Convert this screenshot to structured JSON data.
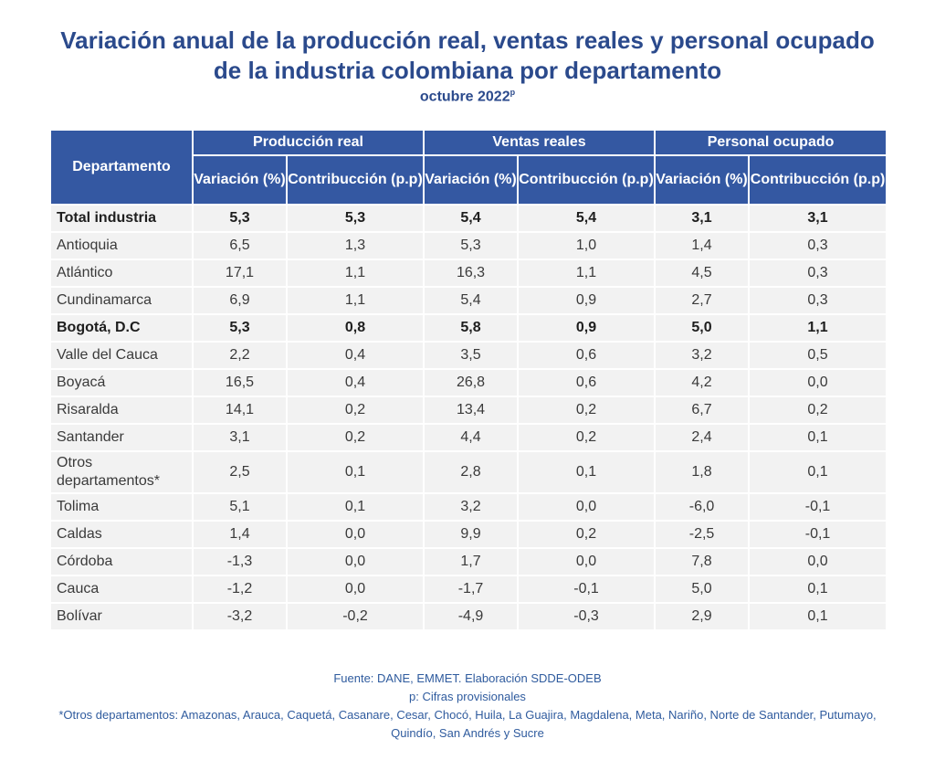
{
  "title_line1": "Variación anual de la producción real, ventas reales y personal ocupado",
  "title_line2": "de la industria colombiana por departamento",
  "subtitle": "octubre 2022",
  "subtitle_sup": "p",
  "chart_data": {
    "type": "table",
    "header_dept": "Departamento",
    "groups": [
      "Producción real",
      "Ventas reales",
      "Personal ocupado"
    ],
    "subheaders": [
      "Variación (%)",
      "Contribucción (p.p)"
    ],
    "rows": [
      {
        "name": "Total industria",
        "bold": true,
        "values": [
          "5,3",
          "5,3",
          "5,4",
          "5,4",
          "3,1",
          "3,1"
        ]
      },
      {
        "name": "Antioquia",
        "bold": false,
        "values": [
          "6,5",
          "1,3",
          "5,3",
          "1,0",
          "1,4",
          "0,3"
        ]
      },
      {
        "name": "Atlántico",
        "bold": false,
        "values": [
          "17,1",
          "1,1",
          "16,3",
          "1,1",
          "4,5",
          "0,3"
        ]
      },
      {
        "name": "Cundinamarca",
        "bold": false,
        "values": [
          "6,9",
          "1,1",
          "5,4",
          "0,9",
          "2,7",
          "0,3"
        ]
      },
      {
        "name": "Bogotá, D.C",
        "bold": true,
        "values": [
          "5,3",
          "0,8",
          "5,8",
          "0,9",
          "5,0",
          "1,1"
        ]
      },
      {
        "name": "Valle del Cauca",
        "bold": false,
        "values": [
          "2,2",
          "0,4",
          "3,5",
          "0,6",
          "3,2",
          "0,5"
        ]
      },
      {
        "name": "Boyacá",
        "bold": false,
        "values": [
          "16,5",
          "0,4",
          "26,8",
          "0,6",
          "4,2",
          "0,0"
        ]
      },
      {
        "name": "Risaralda",
        "bold": false,
        "values": [
          "14,1",
          "0,2",
          "13,4",
          "0,2",
          "6,7",
          "0,2"
        ]
      },
      {
        "name": "Santander",
        "bold": false,
        "values": [
          "3,1",
          "0,2",
          "4,4",
          "0,2",
          "2,4",
          "0,1"
        ]
      },
      {
        "name": "Otros departamentos*",
        "bold": false,
        "values": [
          "2,5",
          "0,1",
          "2,8",
          "0,1",
          "1,8",
          "0,1"
        ]
      },
      {
        "name": "Tolima",
        "bold": false,
        "values": [
          "5,1",
          "0,1",
          "3,2",
          "0,0",
          "-6,0",
          "-0,1"
        ]
      },
      {
        "name": "Caldas",
        "bold": false,
        "values": [
          "1,4",
          "0,0",
          "9,9",
          "0,2",
          "-2,5",
          "-0,1"
        ]
      },
      {
        "name": "Córdoba",
        "bold": false,
        "values": [
          "-1,3",
          "0,0",
          "1,7",
          "0,0",
          "7,8",
          "0,0"
        ]
      },
      {
        "name": "Cauca",
        "bold": false,
        "values": [
          "-1,2",
          "0,0",
          "-1,7",
          "-0,1",
          "5,0",
          "0,1"
        ]
      },
      {
        "name": "Bolívar",
        "bold": false,
        "values": [
          "-3,2",
          "-0,2",
          "-4,9",
          "-0,3",
          "2,9",
          "0,1"
        ]
      }
    ]
  },
  "notes": {
    "source": "Fuente: DANE, EMMET. Elaboración SDDE-ODEB",
    "provisional": "p: Cifras provisionales",
    "others": "*Otros departamentos: Amazonas, Arauca, Caquetá, Casanare, Cesar, Chocó, Huila, La Guajira, Magdalena, Meta, Nariño, Norte de Santander, Putumayo, Quindío, San Andrés y Sucre"
  },
  "colors": {
    "title": "#2b4a8c",
    "header_bg": "#3458a2",
    "row_bg": "#f2f2f2",
    "notes": "#2f5b9e"
  }
}
